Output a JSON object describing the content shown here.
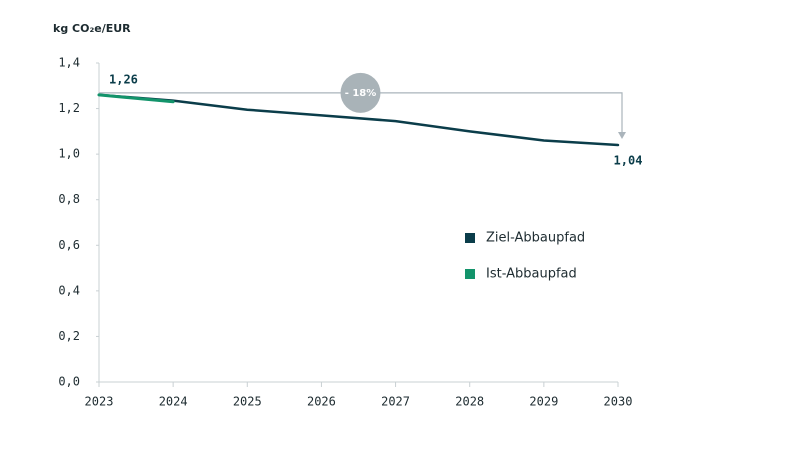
{
  "chart_data": {
    "type": "line",
    "y_label": "kg CO₂e/EUR",
    "annotation": "- 18%",
    "categories": [
      "2023",
      "2024",
      "2025",
      "2026",
      "2027",
      "2028",
      "2029",
      "2030"
    ],
    "series": [
      {
        "name": "Ziel-Abbaupfad",
        "color": "#0b3d4a",
        "values": [
          1.26,
          1.235,
          1.195,
          1.17,
          1.145,
          1.1,
          1.06,
          1.04
        ],
        "value_labels": [
          "1,26",
          null,
          null,
          null,
          null,
          null,
          null,
          "1,04"
        ]
      },
      {
        "name": "Ist-Abbaupfad",
        "color": "#13946b",
        "values": [
          1.26,
          1.23,
          null,
          null,
          null,
          null,
          null,
          null
        ]
      }
    ],
    "ylim": [
      0,
      1.4
    ],
    "yticks": [
      {
        "value": 0,
        "label": "0,0"
      },
      {
        "value": 0.2,
        "label": "0,2"
      },
      {
        "value": 0.4,
        "label": "0,4"
      },
      {
        "value": 0.6,
        "label": "0,6"
      },
      {
        "value": 0.8,
        "label": "0,8"
      },
      {
        "value": 1.0,
        "label": "1,0"
      },
      {
        "value": 1.2,
        "label": "1,2"
      },
      {
        "value": 1.4,
        "label": "1,4"
      }
    ],
    "grid": false
  }
}
